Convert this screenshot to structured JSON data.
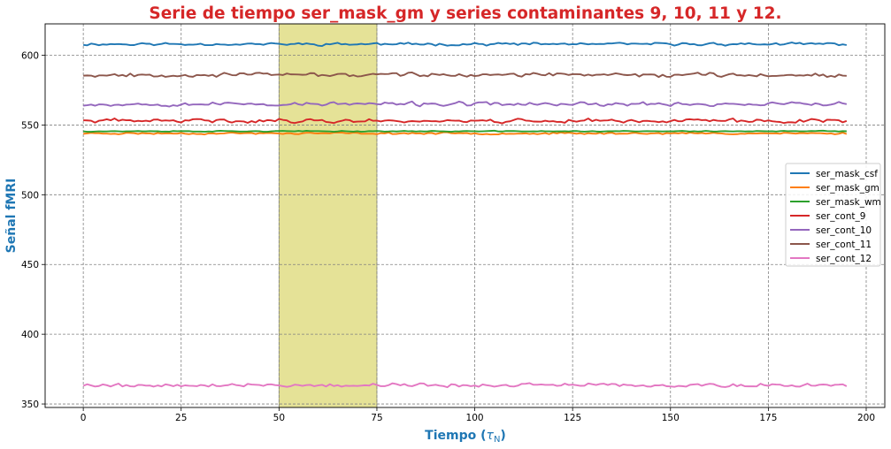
{
  "chart_data": {
    "type": "line",
    "title": "Serie de tiempo ser_mask_gm y series contaminantes 9, 10, 11 y 12.",
    "xlabel_main": "Tiempo (",
    "xlabel_sym": "τ",
    "xlabel_sub": "N",
    "xlabel_end": ")",
    "ylabel": "Señal fMRI",
    "xlim": [
      -9.75,
      204.75
    ],
    "ylim": [
      347.5,
      622.5
    ],
    "x_ticks": [
      0,
      25,
      50,
      75,
      100,
      125,
      150,
      175,
      200
    ],
    "y_ticks": [
      350,
      400,
      450,
      500,
      550,
      600
    ],
    "grid": true,
    "highlight": {
      "x_start": 50,
      "x_end": 75,
      "color": "#e5e297"
    },
    "legend_position": "center-right",
    "n_points": 196,
    "series": [
      {
        "name": "ser_mask_csf",
        "color": "#1f77b4",
        "mean": 608,
        "amplitude": 1.8,
        "seed": 11
      },
      {
        "name": "ser_mask_gm",
        "color": "#ff7f0e",
        "mean": 544,
        "amplitude": 1.2,
        "seed": 23
      },
      {
        "name": "ser_mask_wm",
        "color": "#2ca02c",
        "mean": 545.5,
        "amplitude": 0.6,
        "seed": 37
      },
      {
        "name": "ser_cont_9",
        "color": "#d62728",
        "mean": 553,
        "amplitude": 2.6,
        "seed": 41
      },
      {
        "name": "ser_cont_10",
        "color": "#9467bd",
        "mean": 565,
        "amplitude": 2.6,
        "seed": 53
      },
      {
        "name": "ser_cont_11",
        "color": "#8c564b",
        "mean": 586,
        "amplitude": 2.6,
        "seed": 67
      },
      {
        "name": "ser_cont_12",
        "color": "#e377c2",
        "mean": 363.5,
        "amplitude": 2.4,
        "seed": 79
      }
    ]
  }
}
